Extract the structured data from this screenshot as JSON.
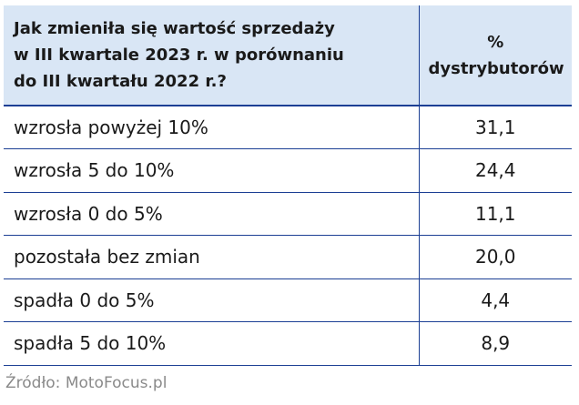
{
  "chart_data": {
    "type": "table",
    "header": {
      "question_lines": [
        "Jak zmieniła się wartość sprzedaży",
        "w III kwartale 2023 r. w porównaniu",
        "do III kwartału 2022 r.?"
      ],
      "value_lines": [
        "%",
        "dystrybutorów"
      ]
    },
    "rows": [
      {
        "category": "wzrosła powyżej 10%",
        "value": "31,1"
      },
      {
        "category": "wzrosła 5 do 10%",
        "value": "24,4"
      },
      {
        "category": "wzrosła 0 do 5%",
        "value": "11,1"
      },
      {
        "category": "pozostała bez zmian",
        "value": "20,0"
      },
      {
        "category": "spadła 0 do 5%",
        "value": "4,4"
      },
      {
        "category": "spadła 5 do 10%",
        "value": "8,9"
      }
    ]
  },
  "source": "Źródło: MotoFocus.pl",
  "colors": {
    "header_bg": "#d9e6f5",
    "border": "#1c3f94",
    "source_text": "#8a8a8a"
  }
}
